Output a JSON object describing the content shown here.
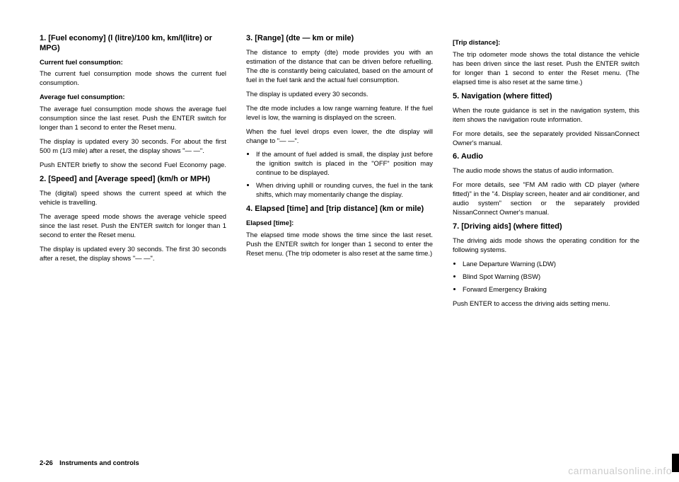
{
  "col1": {
    "h1": "1. [Fuel economy] (l (litre)/100 km, km/l(litre) or MPG)",
    "sub1": "Current fuel consumption:",
    "p1": "The current fuel consumption mode shows the current fuel consumption.",
    "sub2": "Average fuel consumption:",
    "p2": "The average fuel consumption mode shows the average fuel consumption since the last reset. Push the ENTER switch for longer than 1 second to enter the Reset menu.",
    "p3": "The display is updated every 30 seconds. For about the first 500 m (1/3 mile) after a reset, the display shows \"— —\".",
    "p4": "Push ENTER briefly to show the second Fuel Economy page.",
    "h2": "2. [Speed] and [Average speed] (km/h or MPH)",
    "p5": "The (digital) speed shows the current speed at which the vehicle is travelling.",
    "p6": "The average speed mode shows the average vehicle speed since the last reset. Push the ENTER switch for longer than 1 second to enter the Reset menu.",
    "p7": "The display is updated every 30 seconds. The first 30 seconds after a reset, the display shows \"— —\"."
  },
  "col2": {
    "h1": "3. [Range] (dte — km or mile)",
    "p1": "The distance to empty (dte) mode provides you with an estimation of the distance that can be driven before refuelling. The dte is constantly being calculated, based on the amount of fuel in the fuel tank and the actual fuel consumption.",
    "p2": "The display is updated every 30 seconds.",
    "p3": "The dte mode includes a low range warning feature. If the fuel level is low, the warning is displayed on the screen.",
    "p4": "When the fuel level drops even lower, the dte display will change to \"— —\".",
    "li1": "If the amount of fuel added is small, the display just before the ignition switch is placed in the \"OFF\" position may continue to be displayed.",
    "li2": "When driving uphill or rounding curves, the fuel in the tank shifts, which may momentarily change the display.",
    "h2": "4. Elapsed [time] and [trip distance] (km or mile)",
    "sub1": "Elapsed [time]:",
    "p5": "The elapsed time mode shows the time since the last reset. Push the ENTER switch for longer than 1 second to enter the Reset menu. (The trip odometer is also reset at the same time.)"
  },
  "col3": {
    "sub1": "[Trip distance]:",
    "p1": "The trip odometer mode shows the total distance the vehicle has been driven since the last reset. Push the ENTER switch for longer than 1 second to enter the Reset menu. (The elapsed time is also reset at the same time.)",
    "h1": "5. Navigation (where fitted)",
    "p2": "When the route guidance is set in the navigation system, this item shows the navigation route information.",
    "p3": "For more details, see the separately provided NissanConnect Owner's manual.",
    "h2": "6. Audio",
    "p4": "The audio mode shows the status of audio information.",
    "p5": "For more details, see \"FM AM radio with CD player (where fitted)\" in the \"4. Display screen, heater and air conditioner, and audio system\" section or the separately provided NissanConnect Owner's manual.",
    "h3": "7. [Driving aids] (where fitted)",
    "p6": "The driving aids mode shows the operating condition for the following systems.",
    "li1": "Lane Departure Warning (LDW)",
    "li2": "Blind Spot Warning (BSW)",
    "li3": "Forward Emergency Braking",
    "p7": "Push ENTER to access the driving aids setting menu."
  },
  "footer": "2-26 Instruments and controls",
  "watermark": "carmanualsonline.info"
}
